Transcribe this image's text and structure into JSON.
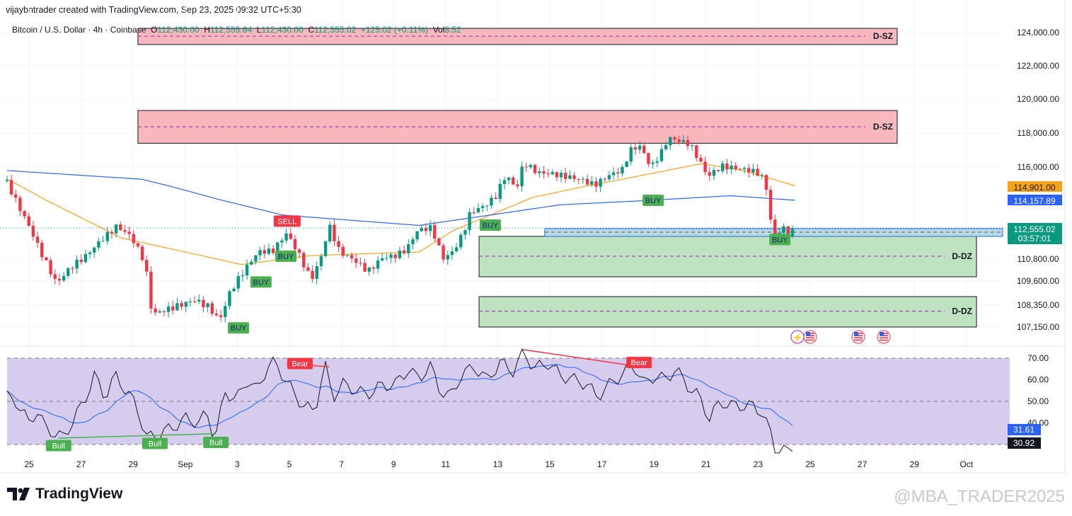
{
  "header": {
    "credit": "vijaybntrader created with TradingView.com, Sep 23, 2025 09:32 UTC+5:30"
  },
  "legend": {
    "symbol": "Bitcoin / U.S. Dollar · 4h · Coinbase",
    "o_label": "O",
    "o": "112,430.00",
    "h_label": "H",
    "h": "112,555.64",
    "l_label": "L",
    "l": "112,430.00",
    "c_label": "C",
    "c": "112,555.02",
    "change": "+125.02 (+0.11%)",
    "vol_label": "Vol",
    "vol": "8.52"
  },
  "price_axis": {
    "ticks": [
      "124,000.00",
      "122,000.00",
      "120,000.00",
      "118,000.00",
      "116,000.00",
      "110,800.00",
      "109,600.00",
      "108,350.00",
      "107,150.00"
    ],
    "ma_fast_label": "114,901.00",
    "ma_slow_label": "114,157.89",
    "last_price": "112,555.02",
    "countdown": "03:57:01"
  },
  "rsi_axis": {
    "ticks": [
      "70.00",
      "60.00",
      "50.00",
      "40.00"
    ],
    "rsi_ma_label": "31.61",
    "rsi_label": "30.92"
  },
  "time_axis": {
    "ticks": [
      "25",
      "27",
      "29",
      "Sep",
      "3",
      "5",
      "7",
      "9",
      "11",
      "13",
      "15",
      "17",
      "19",
      "21",
      "23",
      "25",
      "27",
      "29",
      "Oct"
    ]
  },
  "colors": {
    "up": "#089981",
    "down": "#f23645",
    "ma_fast": "#f7a21b",
    "ma_slow": "#2962ff",
    "supply": "#f7b8bd",
    "demand": "#bfe3c0",
    "rsi_bg": "#d6cdee"
  },
  "zones": [
    {
      "label": "D-SZ",
      "type": "supply",
      "top": 124255,
      "bottom": 123280,
      "mid": 123780,
      "t0": 5.16,
      "t1": 34.16
    },
    {
      "label": "D-SZ",
      "type": "supply",
      "top": 119330,
      "bottom": 117400,
      "mid": 118370,
      "t0": 5.16,
      "t1": 34.16
    },
    {
      "label": "D-DZ",
      "type": "demand",
      "top": 112080,
      "bottom": 109830,
      "mid": 110960,
      "t0": 18.19,
      "t1": 37.19
    },
    {
      "label": "D-DZ",
      "type": "demand",
      "top": 108790,
      "bottom": 107150,
      "mid": 108020,
      "t0": 18.19,
      "t1": 37.19
    }
  ],
  "signals": [
    {
      "label": "SELL",
      "t": 10.86,
      "price": 112950,
      "kind": "sell"
    },
    {
      "label": "BUY",
      "t": 10.81,
      "price": 110960,
      "kind": "buy"
    },
    {
      "label": "BUY",
      "t": 9.86,
      "price": 109550,
      "kind": "buy"
    },
    {
      "label": "BUY",
      "t": 9.0,
      "price": 107100,
      "kind": "buy"
    },
    {
      "label": "BUY",
      "t": 18.62,
      "price": 112720,
      "kind": "buy"
    },
    {
      "label": "BUY",
      "t": 24.84,
      "price": 114157,
      "kind": "buy"
    },
    {
      "label": "BUY",
      "t": 29.68,
      "price": 111900,
      "kind": "buy"
    }
  ],
  "rsi_signals": [
    {
      "label": "Bull",
      "t": 2.13,
      "value": 29.5,
      "kind": "bull"
    },
    {
      "label": "Bull",
      "t": 5.81,
      "value": 30.5,
      "kind": "bull"
    },
    {
      "label": "Bull",
      "t": 8.14,
      "value": 31,
      "kind": "bull"
    },
    {
      "label": "Bear",
      "t": 11.35,
      "value": 67.5,
      "kind": "bear"
    },
    {
      "label": "Bear",
      "t": 24.3,
      "value": 68,
      "kind": "bear"
    }
  ],
  "chart_data": {
    "type": "candlestick",
    "title": "Bitcoin / U.S. Dollar · 4h · Coinbase",
    "x_unit": "days since Aug 24, 2025",
    "price_close_path": [
      [
        0.16,
        115200
      ],
      [
        0.97,
        112900
      ],
      [
        1.51,
        111200
      ],
      [
        2.05,
        109700
      ],
      [
        2.59,
        110600
      ],
      [
        3.14,
        111200
      ],
      [
        3.68,
        112000
      ],
      [
        4.35,
        112900
      ],
      [
        4.89,
        112300
      ],
      [
        5.43,
        110800
      ],
      [
        5.7,
        108000
      ],
      [
        6.24,
        108200
      ],
      [
        6.78,
        108400
      ],
      [
        7.32,
        108600
      ],
      [
        7.86,
        108200
      ],
      [
        8.27,
        107400
      ],
      [
        8.68,
        108900
      ],
      [
        9.22,
        110000
      ],
      [
        9.76,
        111000
      ],
      [
        10.3,
        111000
      ],
      [
        10.84,
        112000
      ],
      [
        11.24,
        111000
      ],
      [
        11.78,
        109400
      ],
      [
        12.19,
        110800
      ],
      [
        12.46,
        112500
      ],
      [
        12.86,
        111000
      ],
      [
        13.41,
        110600
      ],
      [
        13.95,
        110000
      ],
      [
        14.49,
        110800
      ],
      [
        15.03,
        111000
      ],
      [
        15.43,
        111400
      ],
      [
        15.84,
        112500
      ],
      [
        16.38,
        112700
      ],
      [
        16.81,
        111000
      ],
      [
        17.19,
        111400
      ],
      [
        17.59,
        112500
      ],
      [
        17.86,
        113700
      ],
      [
        18.41,
        114100
      ],
      [
        18.81,
        114600
      ],
      [
        19.22,
        115800
      ],
      [
        19.62,
        115000
      ],
      [
        19.89,
        116500
      ],
      [
        20.43,
        115900
      ],
      [
        20.97,
        115800
      ],
      [
        21.51,
        115600
      ],
      [
        22.05,
        115400
      ],
      [
        22.59,
        115000
      ],
      [
        23.14,
        115500
      ],
      [
        23.68,
        115800
      ],
      [
        23.95,
        116900
      ],
      [
        24.35,
        117100
      ],
      [
        24.76,
        115800
      ],
      [
        25.16,
        116700
      ],
      [
        25.43,
        117500
      ],
      [
        25.84,
        117300
      ],
      [
        26.24,
        117100
      ],
      [
        26.65,
        116000
      ],
      [
        26.92,
        115200
      ],
      [
        27.46,
        115800
      ],
      [
        28.0,
        115700
      ],
      [
        28.54,
        115600
      ],
      [
        28.95,
        115400
      ],
      [
        29.22,
        114400
      ],
      [
        29.41,
        111700
      ],
      [
        29.76,
        112500
      ],
      [
        30.03,
        112100
      ],
      [
        30.3,
        112555
      ]
    ],
    "ma_fast": [
      [
        0.16,
        115300
      ],
      [
        4.5,
        112000
      ],
      [
        9.1,
        110500
      ],
      [
        11.8,
        111000
      ],
      [
        15.9,
        111200
      ],
      [
        17.2,
        112400
      ],
      [
        20.2,
        114300
      ],
      [
        24.0,
        115400
      ],
      [
        26.7,
        116200
      ],
      [
        28.3,
        115800
      ],
      [
        30.3,
        114901
      ]
    ],
    "ma_slow": [
      [
        0.16,
        115800
      ],
      [
        5.3,
        115300
      ],
      [
        10.7,
        113300
      ],
      [
        15.9,
        112700
      ],
      [
        18.6,
        113300
      ],
      [
        21.3,
        113900
      ],
      [
        24.0,
        114100
      ],
      [
        27.8,
        114400
      ],
      [
        30.3,
        114157.89
      ]
    ],
    "rsi": [
      [
        0.16,
        52
      ],
      [
        0.5,
        50
      ],
      [
        1.0,
        40
      ],
      [
        1.3,
        46
      ],
      [
        1.6,
        38
      ],
      [
        2.0,
        35
      ],
      [
        2.3,
        33
      ],
      [
        3.1,
        50
      ],
      [
        3.5,
        62
      ],
      [
        3.9,
        52
      ],
      [
        4.3,
        62
      ],
      [
        4.7,
        55
      ],
      [
        5.1,
        48
      ],
      [
        5.5,
        33
      ],
      [
        6.0,
        35
      ],
      [
        6.5,
        38
      ],
      [
        7.0,
        42
      ],
      [
        7.5,
        40
      ],
      [
        7.8,
        45
      ],
      [
        8.1,
        32
      ],
      [
        8.5,
        55
      ],
      [
        8.9,
        50
      ],
      [
        9.3,
        60
      ],
      [
        9.7,
        55
      ],
      [
        10.1,
        66
      ],
      [
        10.4,
        68
      ],
      [
        10.8,
        60
      ],
      [
        11.2,
        52
      ],
      [
        11.5,
        48
      ],
      [
        11.9,
        45
      ],
      [
        12.3,
        67
      ],
      [
        12.6,
        52
      ],
      [
        13.0,
        58
      ],
      [
        13.5,
        55
      ],
      [
        13.9,
        53
      ],
      [
        14.4,
        57
      ],
      [
        15.0,
        58
      ],
      [
        15.5,
        65
      ],
      [
        15.9,
        60
      ],
      [
        16.3,
        67
      ],
      [
        16.7,
        55
      ],
      [
        17.1,
        52
      ],
      [
        17.5,
        62
      ],
      [
        18.0,
        66
      ],
      [
        18.5,
        60
      ],
      [
        19.0,
        68
      ],
      [
        19.5,
        64
      ],
      [
        19.9,
        73
      ],
      [
        20.3,
        65
      ],
      [
        20.8,
        68
      ],
      [
        21.3,
        62
      ],
      [
        21.8,
        60
      ],
      [
        22.3,
        58
      ],
      [
        22.7,
        52
      ],
      [
        23.1,
        57
      ],
      [
        23.6,
        62
      ],
      [
        24.1,
        67
      ],
      [
        24.5,
        58
      ],
      [
        24.9,
        62
      ],
      [
        25.3,
        60
      ],
      [
        25.7,
        65
      ],
      [
        26.1,
        58
      ],
      [
        26.6,
        52
      ],
      [
        27.0,
        42
      ],
      [
        27.4,
        50
      ],
      [
        27.8,
        48
      ],
      [
        28.2,
        48
      ],
      [
        28.6,
        48
      ],
      [
        29.0,
        45
      ],
      [
        29.3,
        36
      ],
      [
        29.5,
        27
      ],
      [
        29.8,
        28
      ],
      [
        30.0,
        26
      ],
      [
        30.3,
        30.92
      ]
    ],
    "divergences": [
      {
        "kind": "bull",
        "from": [
          2.13,
          33
        ],
        "to": [
          8.14,
          35
        ]
      },
      {
        "kind": "bear",
        "from": [
          10.84,
          67.5
        ],
        "to": [
          12.46,
          66
        ]
      },
      {
        "kind": "bear",
        "from": [
          19.84,
          74
        ],
        "to": [
          24.35,
          66
        ]
      }
    ],
    "rsi_levels": [
      70,
      50,
      30
    ],
    "ylim": [
      107150,
      124000
    ],
    "xlabel": "",
    "ylabel": ""
  },
  "events": [
    {
      "icon": "lightning-icon"
    },
    {
      "icon": "us-flag-icon"
    },
    {
      "icon": "us-flag-icon"
    },
    {
      "icon": "us-flag-icon"
    }
  ],
  "footer": {
    "brand": "TradingView",
    "watermark": "@MBA_TRADER2025"
  }
}
